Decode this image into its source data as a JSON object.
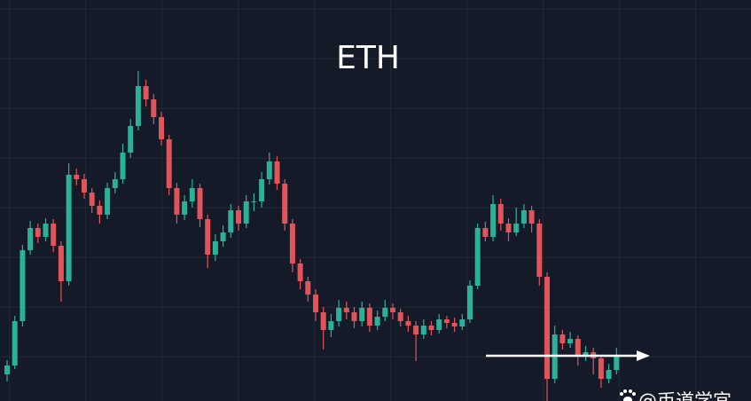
{
  "chart_data": {
    "type": "candlestick",
    "title": "ETH",
    "watermark": "@币道学宜",
    "colors": {
      "up": "#2bb09a",
      "down": "#e0545a"
    },
    "ylim": [
      0,
      452
    ],
    "open": [
      30,
      40,
      90,
      170,
      195,
      185,
      200,
      175,
      135,
      255,
      250,
      235,
      220,
      210,
      240,
      250,
      280,
      310,
      355,
      340,
      320,
      295,
      240,
      210,
      225,
      240,
      205,
      165,
      180,
      190,
      215,
      200,
      225,
      225,
      250,
      270,
      245,
      200,
      155,
      135,
      120,
      100,
      80,
      90,
      105,
      100,
      90,
      105,
      85,
      95,
      105,
      100,
      90,
      85,
      75,
      85,
      80,
      92,
      88,
      84,
      92,
      130,
      195,
      185,
      222,
      200,
      190,
      200,
      215,
      200,
      140,
      25,
      75,
      65,
      70,
      50,
      55,
      48,
      25,
      35
    ],
    "high": [
      46,
      96,
      176,
      203,
      200,
      206,
      205,
      180,
      268,
      262,
      256,
      240,
      226,
      246,
      258,
      290,
      318,
      372,
      362,
      346,
      326,
      300,
      246,
      232,
      250,
      245,
      210,
      188,
      198,
      222,
      220,
      232,
      234,
      258,
      280,
      276,
      250,
      205,
      160,
      140,
      126,
      106,
      98,
      114,
      112,
      106,
      112,
      110,
      102,
      114,
      110,
      104,
      96,
      90,
      92,
      90,
      98,
      96,
      94,
      98,
      136,
      200,
      202,
      232,
      228,
      206,
      218,
      222,
      220,
      205,
      145,
      85,
      80,
      78,
      74,
      62,
      60,
      52,
      42,
      60
    ],
    "low": [
      22,
      36,
      84,
      165,
      178,
      180,
      168,
      112,
      130,
      243,
      228,
      212,
      200,
      205,
      234,
      245,
      274,
      305,
      332,
      312,
      288,
      232,
      200,
      204,
      218,
      196,
      150,
      158,
      174,
      184,
      192,
      195,
      214,
      218,
      244,
      238,
      192,
      145,
      126,
      112,
      90,
      58,
      72,
      84,
      92,
      82,
      84,
      78,
      80,
      90,
      92,
      84,
      78,
      45,
      70,
      74,
      76,
      82,
      78,
      80,
      88,
      126,
      180,
      180,
      192,
      180,
      186,
      195,
      190,
      130,
      0,
      20,
      58,
      60,
      40,
      45,
      30,
      15,
      20,
      30
    ],
    "close": [
      40,
      90,
      170,
      195,
      185,
      200,
      175,
      135,
      255,
      250,
      235,
      220,
      210,
      240,
      250,
      280,
      310,
      355,
      340,
      320,
      295,
      240,
      210,
      225,
      240,
      205,
      165,
      180,
      190,
      215,
      200,
      225,
      225,
      250,
      270,
      245,
      200,
      155,
      135,
      120,
      100,
      80,
      90,
      105,
      100,
      90,
      105,
      85,
      95,
      105,
      100,
      90,
      85,
      75,
      85,
      80,
      92,
      88,
      84,
      92,
      130,
      195,
      185,
      222,
      200,
      190,
      200,
      215,
      200,
      140,
      25,
      75,
      65,
      70,
      50,
      55,
      48,
      25,
      35,
      50
    ]
  }
}
